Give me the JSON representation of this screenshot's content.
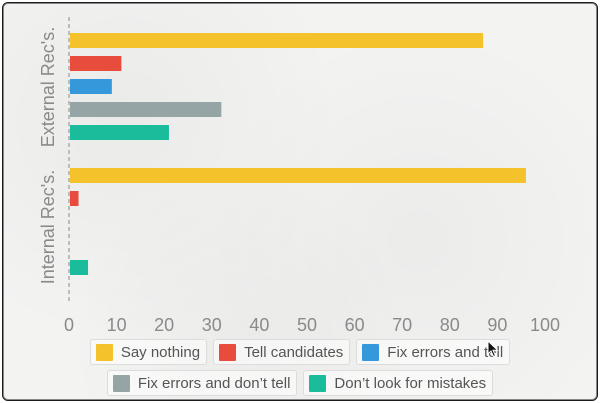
{
  "chart_data": {
    "type": "bar",
    "orientation": "horizontal",
    "categories": [
      "External Rec's.",
      "Internal Rec's."
    ],
    "series": [
      {
        "name": "Say nothing",
        "color": "#f4c22b",
        "values": [
          87,
          96
        ]
      },
      {
        "name": "Tell candidates",
        "color": "#e74c3c",
        "values": [
          11,
          2
        ]
      },
      {
        "name": "Fix errors and tell",
        "color": "#3498db",
        "values": [
          9,
          0
        ]
      },
      {
        "name": "Fix errors and don’t tell",
        "color": "#95a5a6",
        "values": [
          32,
          0
        ]
      },
      {
        "name": "Don’t look for mistakes",
        "color": "#1abc9c",
        "values": [
          21,
          4
        ]
      }
    ],
    "xlim": [
      0,
      100
    ],
    "xticks": [
      "0",
      "10",
      "20",
      "30",
      "40",
      "50",
      "60",
      "70",
      "80",
      "90",
      "100"
    ],
    "grid": false,
    "legend_position": "bottom"
  }
}
